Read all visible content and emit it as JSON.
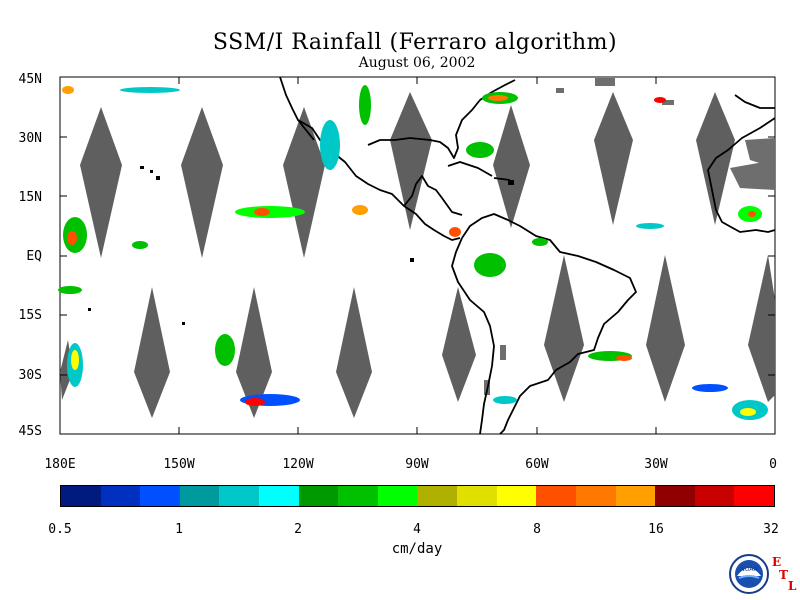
{
  "title": "SSM/I Rainfall (Ferraro algorithm)",
  "date": "August 06, 2002",
  "lat_labels": [
    "45N",
    "30N",
    "15N",
    "EQ",
    "15S",
    "30S",
    "45S"
  ],
  "lon_labels": [
    "180E",
    "150W",
    "120W",
    "90W",
    "60W",
    "30W",
    "0"
  ],
  "colorbar": {
    "colors": [
      "#001a80",
      "#0030c0",
      "#0050ff",
      "#00999d",
      "#00c8c8",
      "#00ffff",
      "#009900",
      "#00c000",
      "#00ff00",
      "#b0b000",
      "#e0e000",
      "#ffff00",
      "#ff5000",
      "#ff7800",
      "#ffa000",
      "#900000",
      "#c80000",
      "#ff0000"
    ],
    "labels": [
      "0.5",
      "1",
      "2",
      "4",
      "8",
      "16",
      "32"
    ],
    "units": "cm/day"
  },
  "colors": {
    "swath_gap": "#5f5f5f",
    "coast": "#000000",
    "land_gray": "#6e6e6e"
  },
  "logo": {
    "name": "NOAA",
    "text": "NOAA",
    "etl_letters": [
      "E",
      "T",
      "L"
    ]
  }
}
